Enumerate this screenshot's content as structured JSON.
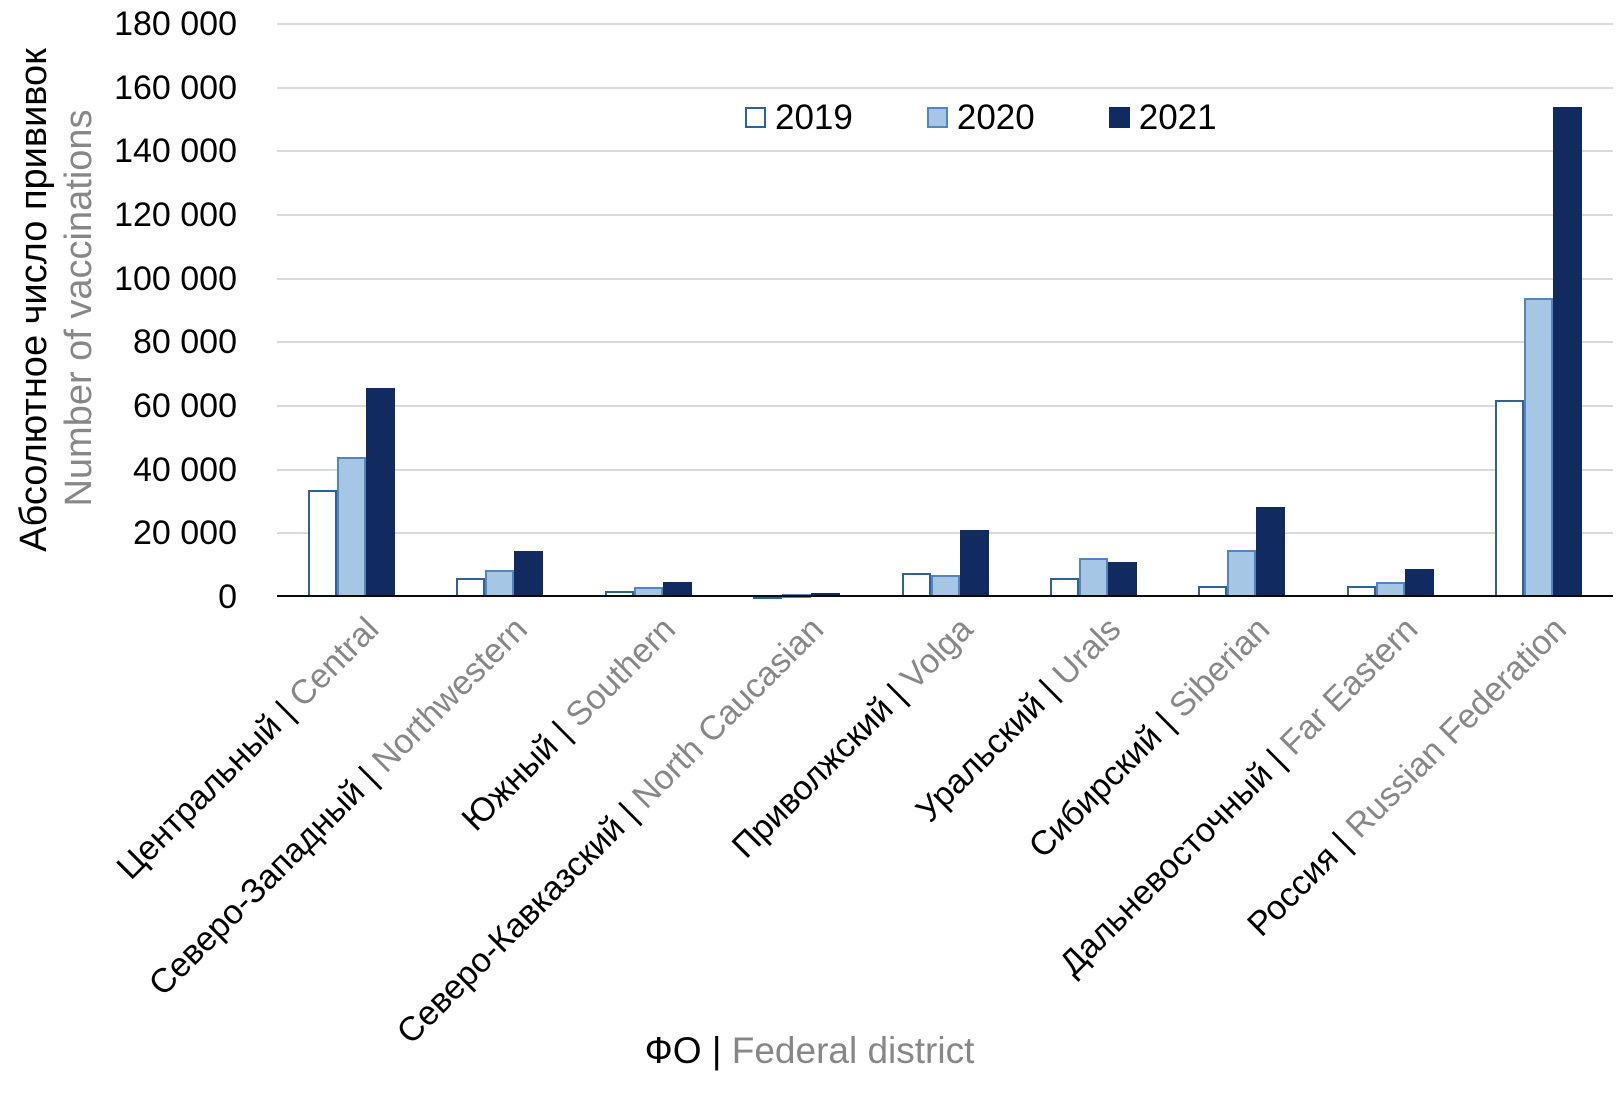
{
  "chart_data": {
    "type": "bar",
    "y_axis_title_ru": "Абсолютное число прививок",
    "y_axis_title_en": "Number of vaccinations",
    "x_axis_title_ru": "ФО",
    "x_axis_title_en": "Federal district",
    "label_separator": "|",
    "ylim": [
      0,
      180000
    ],
    "y_tick_step": 20000,
    "y_tick_labels": [
      "0",
      "20 000",
      "40 000",
      "60 000",
      "80 000",
      "100 000",
      "120 000",
      "140 000",
      "160 000",
      "180 000"
    ],
    "grid": true,
    "legend_position": "top-center",
    "categories": [
      {
        "ru": "Центральный",
        "en": "Central"
      },
      {
        "ru": "Северо-Западный",
        "en": "Northwestern"
      },
      {
        "ru": "Южный",
        "en": "Southern"
      },
      {
        "ru": "Северо-Кавказский",
        "en": "North Caucasian"
      },
      {
        "ru": "Приволжский",
        "en": "Volga"
      },
      {
        "ru": "Уральский",
        "en": "Urals"
      },
      {
        "ru": "Сибирский",
        "en": "Siberian"
      },
      {
        "ru": "Дальневосточный",
        "en": "Far Eastern"
      },
      {
        "ru": "Россия",
        "en": "Russian Federation"
      }
    ],
    "series": [
      {
        "name": "2019",
        "fill": "#FFFFFF",
        "border": "#2E6296",
        "values": [
          33500,
          6000,
          2000,
          600,
          7400,
          6000,
          3500,
          3400,
          62000
        ]
      },
      {
        "name": "2020",
        "fill": "#A6C6E6",
        "border": "#5585BB",
        "values": [
          44000,
          8500,
          3000,
          800,
          7000,
          12200,
          14800,
          4800,
          93800
        ]
      },
      {
        "name": "2021",
        "fill": "#112A60",
        "border": "#112A60",
        "values": [
          65500,
          14500,
          4700,
          1300,
          21000,
          11000,
          28400,
          8700,
          154000
        ]
      }
    ],
    "colors": {
      "gridline": "#D9D9D9",
      "axis": "#0A0A0A",
      "text_primary": "#000000",
      "text_secondary": "#878787"
    }
  }
}
